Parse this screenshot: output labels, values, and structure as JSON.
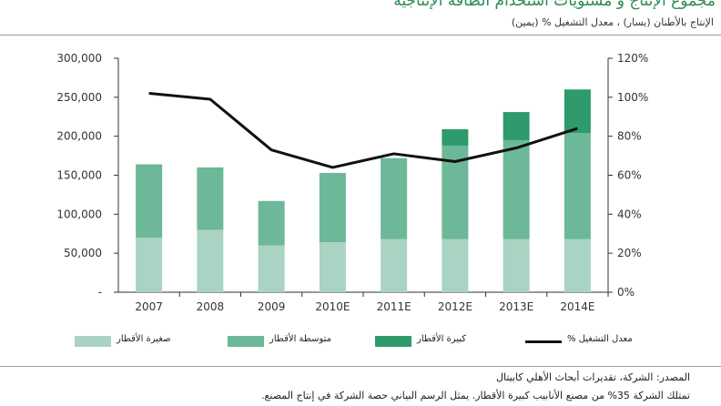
{
  "header": {
    "title": "مجموع الإنتاج و مستويات استخدام الطاقة الإنتاجية",
    "subtitle": "الإنتاج بالأطنان (يسار) ، معدل التشغيل % (يمين)"
  },
  "legend": {
    "small": "صغيرة الأقطار",
    "medium": "متوسطة الأقطار",
    "large": "كبيرة الأقطار",
    "utilization": "معدل التشغيل %"
  },
  "footnotes": {
    "source": "المصدر: الشركة، تقديرات أبحاث الأهلي كابيتال",
    "note": "تمتلك الشركة 35% من مصنع الأنابيب كبيرة الأقطار. يمثل الرسم البياني حصة الشركة في إنتاج المصنع."
  },
  "colors": {
    "small": "#a9d3c2",
    "medium": "#6cb898",
    "large": "#2f9a6c",
    "line": "#111111"
  },
  "chart_data": {
    "type": "bar",
    "stacked": true,
    "categories": [
      "2007",
      "2008",
      "2009",
      "2010E",
      "2011E",
      "2012E",
      "2013E",
      "2014E"
    ],
    "series": [
      {
        "name": "صغيرة الأقطار",
        "values": [
          70000,
          80000,
          60000,
          64000,
          68000,
          68000,
          68000,
          68000
        ]
      },
      {
        "name": "متوسطة الأقطار",
        "values": [
          94000,
          80000,
          57000,
          89000,
          104000,
          120000,
          127000,
          136000
        ]
      },
      {
        "name": "كبيرة الأقطار",
        "values": [
          0,
          0,
          0,
          0,
          0,
          21000,
          36000,
          56000
        ]
      }
    ],
    "line_series": {
      "name": "معدل التشغيل %",
      "axis": "right",
      "values": [
        102,
        99,
        73,
        64,
        71,
        67,
        74,
        84
      ]
    },
    "y_left": {
      "min": 0,
      "max": 300000,
      "ticks": [
        "-",
        "50,000",
        "100,000",
        "150,000",
        "200,000",
        "250,000",
        "300,000"
      ]
    },
    "y_right": {
      "min": 0,
      "max": 120,
      "ticks": [
        "0%",
        "20%",
        "40%",
        "60%",
        "80%",
        "100%",
        "120%"
      ]
    },
    "grid": false,
    "legend_position": "bottom"
  }
}
